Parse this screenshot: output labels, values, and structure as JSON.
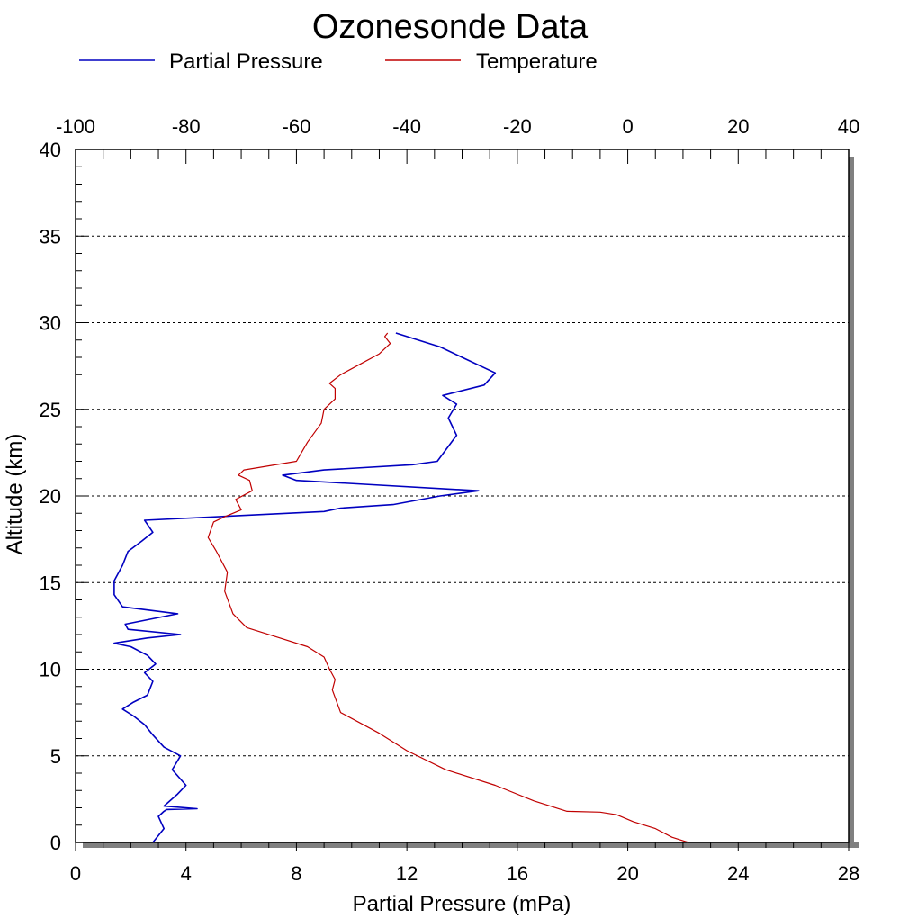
{
  "chart_data": {
    "type": "line",
    "title": "Ozonesonde Data",
    "xlabel": "Partial Pressure (mPa)",
    "ylabel": "Altitude (km)",
    "xlim": [
      0,
      28
    ],
    "ylim": [
      0,
      40
    ],
    "x2lim": [
      -100,
      40
    ],
    "x_ticks": [
      0,
      4,
      8,
      12,
      16,
      20,
      24,
      28
    ],
    "x2_ticks": [
      -100,
      -80,
      -60,
      -40,
      -20,
      0,
      20,
      40
    ],
    "y_ticks": [
      0,
      5,
      10,
      15,
      20,
      25,
      30,
      35,
      40
    ],
    "grid": "horizontal dashed",
    "legend_position": "top",
    "series": [
      {
        "name": "Partial Pressure",
        "axis": "bottom",
        "color": "#0000c0",
        "x": [
          2.8,
          3.2,
          3.0,
          3.2,
          3.3,
          4.4,
          3.2,
          3.7,
          4.0,
          3.5,
          3.8,
          3.2,
          2.8,
          2.5,
          2.1,
          1.7,
          2.1,
          2.6,
          2.8,
          2.5,
          2.9,
          2.6,
          2.0,
          1.4,
          2.6,
          3.8,
          1.9,
          1.8,
          3.7,
          1.7,
          1.4,
          1.4,
          1.7,
          1.9,
          2.4,
          2.8,
          2.5,
          9.0,
          9.6,
          11.5,
          13.2,
          14.6,
          8.0,
          7.5,
          9.0,
          12.2,
          13.1,
          13.8,
          13.5,
          13.8,
          13.3,
          14.8,
          15.2,
          14.0,
          13.2,
          11.6
        ],
        "y": [
          0.0,
          0.8,
          1.5,
          1.8,
          1.9,
          1.95,
          2.1,
          2.8,
          3.3,
          4.2,
          5.0,
          5.5,
          6.2,
          6.8,
          7.3,
          7.7,
          8.1,
          8.5,
          9.3,
          9.8,
          10.3,
          10.8,
          11.3,
          11.5,
          11.8,
          12.0,
          12.3,
          12.6,
          13.2,
          13.6,
          14.3,
          15.1,
          16.0,
          16.8,
          17.4,
          17.9,
          18.6,
          19.1,
          19.3,
          19.5,
          20.0,
          20.3,
          20.9,
          21.2,
          21.5,
          21.8,
          22.0,
          23.5,
          24.5,
          25.3,
          25.8,
          26.4,
          27.1,
          28.0,
          28.6,
          29.4
        ]
      },
      {
        "name": "Temperature",
        "axis": "top",
        "color": "#c00000",
        "x": [
          11.0,
          8.0,
          5.0,
          1.0,
          -2.0,
          -5.0,
          -11.0,
          -17.0,
          -24.0,
          -33.0,
          -40.0,
          -45.0,
          -52.0,
          -53.5,
          -53.0,
          -54.0,
          -55.0,
          -58.0,
          -63.0,
          -69.0,
          -71.5,
          -73.0,
          -72.5,
          -74.5,
          -76.0,
          -75.0,
          -73.0,
          -70.0,
          -71.0,
          -68.0,
          -68.5,
          -70.5,
          -69.5,
          -60.0,
          -58.0,
          -55.5,
          -55.0,
          -53.0,
          -53.0,
          -54.0,
          -52.0,
          -48.5,
          -45.0,
          -43.0,
          -44.0,
          -43.5
        ],
        "y": [
          0.0,
          0.3,
          0.8,
          1.2,
          1.6,
          1.75,
          1.8,
          2.4,
          3.3,
          4.2,
          5.3,
          6.3,
          7.5,
          8.8,
          9.4,
          10.0,
          10.7,
          11.3,
          11.8,
          12.4,
          13.2,
          14.5,
          15.6,
          16.8,
          17.6,
          18.5,
          18.8,
          19.2,
          19.8,
          20.3,
          20.9,
          21.2,
          21.5,
          22.0,
          23.1,
          24.2,
          25.0,
          25.6,
          26.2,
          26.5,
          27.0,
          27.6,
          28.2,
          28.8,
          29.2,
          29.4
        ]
      }
    ]
  }
}
